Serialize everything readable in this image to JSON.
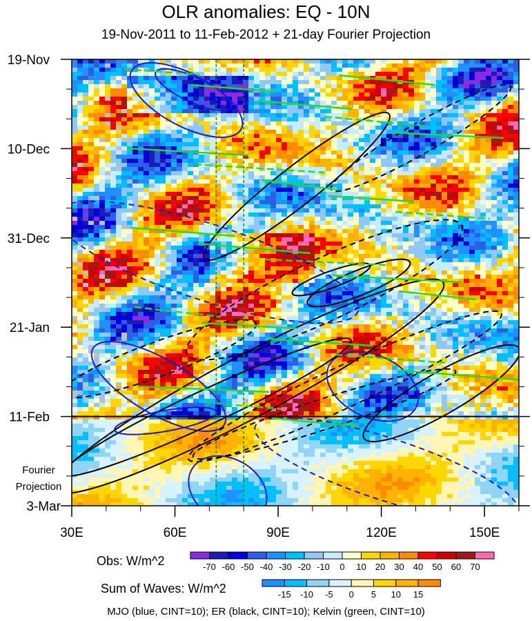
{
  "title": "OLR anomalies: EQ - 10N",
  "subtitle": "19-Nov-2011 to 11-Feb-2012 + 21-day Fourier Projection",
  "chart_data": {
    "type": "heatmap",
    "x_ticks": [
      "30E",
      "60E",
      "90E",
      "120E",
      "150E"
    ],
    "x_values": [
      30,
      60,
      90,
      120,
      150
    ],
    "xlim": [
      30,
      160
    ],
    "y_ticks": [
      "19-Nov",
      "10-Dec",
      "31-Dec",
      "21-Jan",
      "11-Feb",
      "3-Mar"
    ],
    "y_days": [
      0,
      21,
      42,
      63,
      84,
      105
    ],
    "ylim_days": [
      0,
      105
    ],
    "projection_label_line1": "Fourier",
    "projection_label_line2": "Projection",
    "projection_start_day": 84,
    "reference_longitudes": [
      72,
      80
    ],
    "obs_colorbar": {
      "label": "Obs: W/m^2",
      "levels": [
        "-70",
        "-60",
        "-50",
        "-40",
        "-30",
        "-20",
        "-10",
        "0",
        "10",
        "20",
        "30",
        "40",
        "50",
        "60",
        "70"
      ],
      "colors": [
        "#8a2be2",
        "#1c1cb4",
        "#0000d8",
        "#2a5fe8",
        "#1e90ff",
        "#00bfff",
        "#8fc7f7",
        "#c6ecff",
        "#ffffc8",
        "#ffd700",
        "#ffb300",
        "#ff8c00",
        "#ff0000",
        "#d00000",
        "#a01818",
        "#ff69b4"
      ]
    },
    "waves_colorbar": {
      "label": "Sum of Waves: W/m^2",
      "levels": [
        "-15",
        "-10",
        "-5",
        "0",
        "5",
        "10",
        "15"
      ],
      "colors": [
        "#1e90ff",
        "#00bfff",
        "#8fd3f5",
        "#d8f2ff",
        "#fff5b5",
        "#ffd700",
        "#ffb300",
        "#ff8c00"
      ]
    },
    "legend_text": "MJO (blue, CINT=10); ER (black, CINT=10); Kelvin (green, CINT=10)",
    "series": [
      {
        "name": "MJO",
        "color": "#1a1acc"
      },
      {
        "name": "ER",
        "color": "#000000"
      },
      {
        "name": "Kelvin",
        "color": "#22dd22"
      }
    ]
  }
}
